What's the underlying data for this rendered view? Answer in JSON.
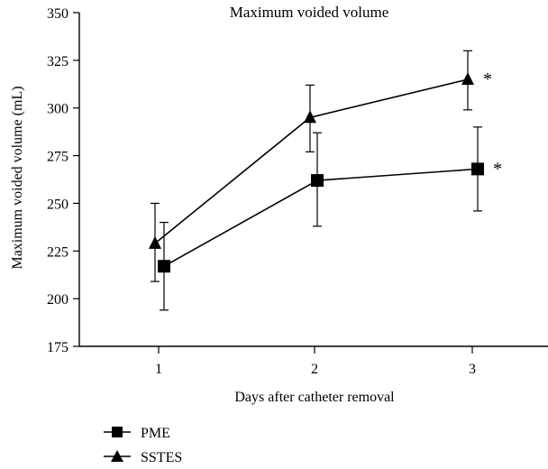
{
  "chart_data": {
    "type": "line",
    "title": "Maximum voided volume",
    "xlabel": "Days after catheter removal",
    "ylabel": "Maximum voided volume (mL)",
    "x_categories": [
      "1",
      "2",
      "3"
    ],
    "ylim": [
      175,
      350
    ],
    "yticks": [
      175,
      200,
      225,
      250,
      275,
      300,
      325,
      350
    ],
    "grid": false,
    "legend_placement": "bottom-left",
    "series": [
      {
        "name": "PME",
        "marker": "square",
        "color": "#000000",
        "values": [
          217,
          262,
          268
        ],
        "error_bars": [
          [
            194,
            240
          ],
          [
            238,
            287
          ],
          [
            246,
            290
          ]
        ]
      },
      {
        "name": "SSTES",
        "marker": "triangle",
        "color": "#000000",
        "values": [
          229,
          295,
          315
        ],
        "error_bars": [
          [
            209,
            250
          ],
          [
            277,
            312
          ],
          [
            299,
            330
          ]
        ]
      }
    ],
    "annotations": [
      {
        "text": "*",
        "series": "SSTES",
        "x": "3"
      },
      {
        "text": "*",
        "series": "PME",
        "x": "3"
      }
    ]
  }
}
